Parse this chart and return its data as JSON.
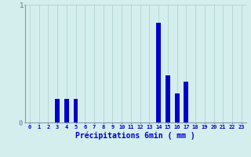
{
  "hours": [
    0,
    1,
    2,
    3,
    4,
    5,
    6,
    7,
    8,
    9,
    10,
    11,
    12,
    13,
    14,
    15,
    16,
    17,
    18,
    19,
    20,
    21,
    22,
    23
  ],
  "precip": [
    0,
    0,
    0,
    0.2,
    0.2,
    0.2,
    0,
    0,
    0,
    0,
    0,
    0,
    0,
    0,
    0.85,
    0.4,
    0.25,
    0.35,
    0,
    0,
    0,
    0,
    0,
    0
  ],
  "bar_color": "#0000cc",
  "background_color": "#d4eeee",
  "grid_color": "#aacccc",
  "axis_color": "#8899aa",
  "xlabel": "Précipitations 6min ( mm )",
  "xlabel_color": "#0000cc",
  "tick_color": "#0000cc",
  "ylim": [
    0,
    1.0
  ],
  "yticks": [
    0,
    1
  ],
  "bar_width": 0.5
}
